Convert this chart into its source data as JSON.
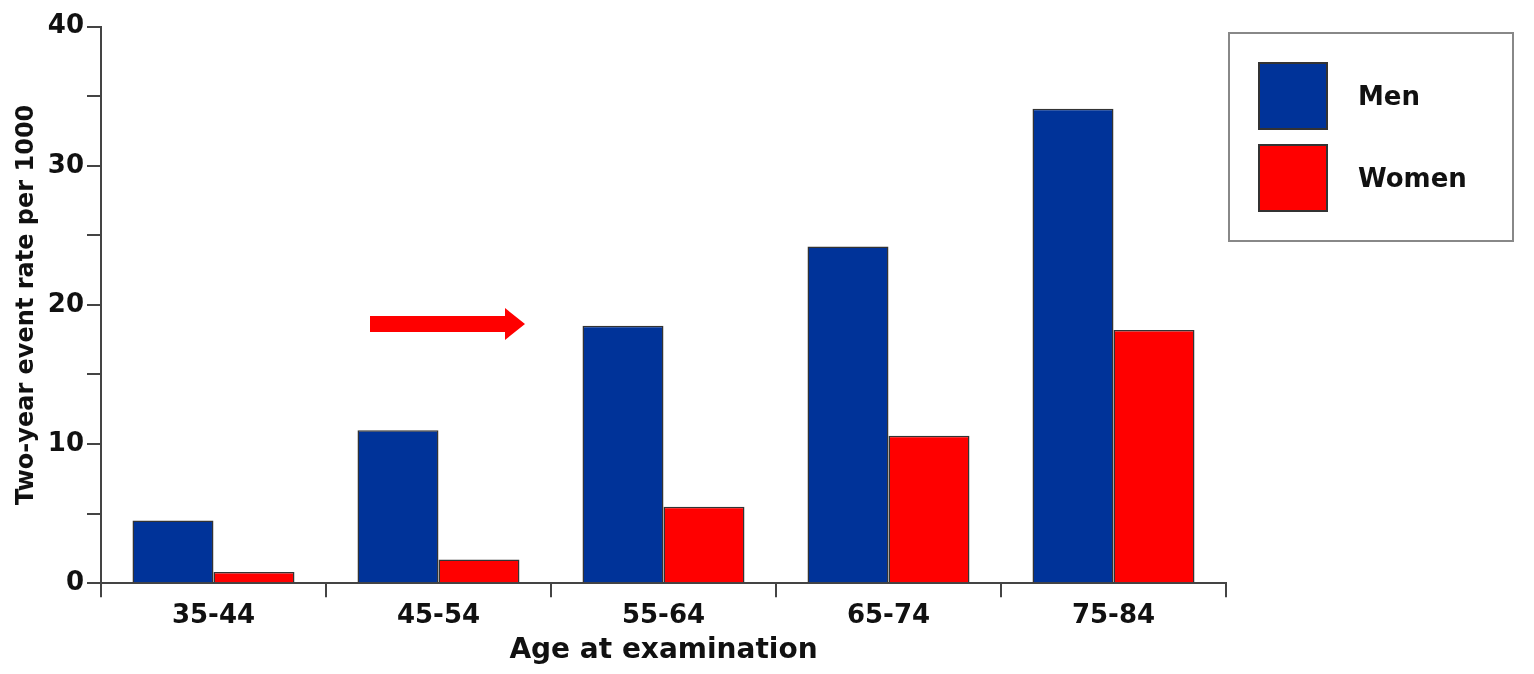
{
  "chart_data": {
    "type": "bar",
    "xlabel": "Age at examination",
    "ylabel": "Two-year event rate per 1000",
    "categories": [
      "35-44",
      "45-54",
      "55-64",
      "65-74",
      "75-84"
    ],
    "series": [
      {
        "name": "Men",
        "color": "#003399",
        "values": [
          4.5,
          11,
          18.5,
          24.2,
          34.1
        ]
      },
      {
        "name": "Women",
        "color": "#ff0000",
        "values": [
          0.8,
          1.7,
          5.5,
          10.6,
          18.2
        ]
      }
    ],
    "ylim": [
      0,
      40
    ],
    "yticks": [
      0,
      {
        "value": 5,
        "label": null
      },
      10,
      {
        "value": 15,
        "label": null
      },
      20,
      {
        "value": 25,
        "label": null
      },
      30,
      {
        "value": 35,
        "label": null
      },
      40
    ],
    "grid": false,
    "legend": "top right"
  }
}
